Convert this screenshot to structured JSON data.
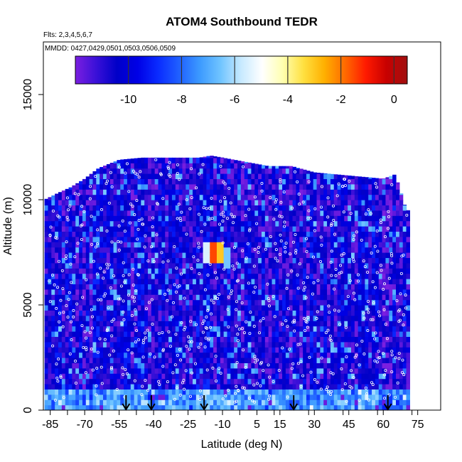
{
  "chart_data": {
    "type": "heatmap",
    "title": "ATOM4 Southbound TEDR",
    "flights_label": "Flts: 2,3,4,5,6,7",
    "dates_label": "MMDD: 0427,0429,0501,0503,0506,0509",
    "xlabel": "Latitude (deg N)",
    "ylabel": "Altitude (m)",
    "xlim": [
      -88,
      85
    ],
    "ylim": [
      0,
      17500
    ],
    "x_ticks": [
      -85,
      -70,
      -55,
      -40,
      -25,
      -10,
      5,
      15,
      30,
      45,
      60,
      75
    ],
    "x_tick_labels": [
      "-85",
      "-70",
      "-55",
      "-40",
      "-25",
      "-10",
      "5",
      "15",
      "30",
      "45",
      "60",
      "75"
    ],
    "y_ticks": [
      0,
      5000,
      10000,
      15000
    ],
    "y_tick_labels": [
      "0",
      "5000",
      "10000",
      "15000"
    ],
    "colorbar": {
      "range": [
        -12,
        0.5
      ],
      "ticks": [
        -10,
        -8,
        -6,
        -4,
        -2,
        0
      ],
      "tick_labels": [
        "-10",
        "-8",
        "-6",
        "-4",
        "-2",
        "0"
      ],
      "colors": [
        "#7b1fe0",
        "#3a10d8",
        "#0000c8",
        "#0000e6",
        "#0a2cff",
        "#2060ff",
        "#3c9aff",
        "#70c4ff",
        "#c8eaff",
        "#ffffff",
        "#ffffb0",
        "#ffe040",
        "#ffb000",
        "#ff6a00",
        "#ff1a00",
        "#c80000",
        "#a01010"
      ]
    },
    "coverage_top": [
      [
        -87.5,
        10000
      ],
      [
        -82,
        10300
      ],
      [
        -76,
        10600
      ],
      [
        -70,
        11000
      ],
      [
        -64,
        11500
      ],
      [
        -55,
        11900
      ],
      [
        -45,
        12000
      ],
      [
        -35,
        12000
      ],
      [
        -20,
        12000
      ],
      [
        -15,
        12100
      ],
      [
        -10,
        12000
      ],
      [
        0,
        11800
      ],
      [
        10,
        11600
      ],
      [
        20,
        11600
      ],
      [
        30,
        11300
      ],
      [
        40,
        11200
      ],
      [
        50,
        11100
      ],
      [
        60,
        11000
      ],
      [
        65,
        11200
      ],
      [
        67,
        10600
      ],
      [
        68,
        10200
      ],
      [
        70,
        9500
      ]
    ],
    "coverage_bottom_x": [
      -87.5,
      71.5
    ],
    "hotspots": [
      {
        "lat": -15,
        "alt": 7300,
        "value": -1.5
      },
      {
        "lat": -12,
        "alt": 7300,
        "value": -3
      },
      {
        "lat": -18,
        "alt": 7300,
        "value": -5.5
      },
      {
        "lat": -9,
        "alt": 7100,
        "value": -6.5
      }
    ],
    "flight_track_arrows_lat": [
      -52,
      -41,
      -18,
      21,
      62
    ]
  }
}
